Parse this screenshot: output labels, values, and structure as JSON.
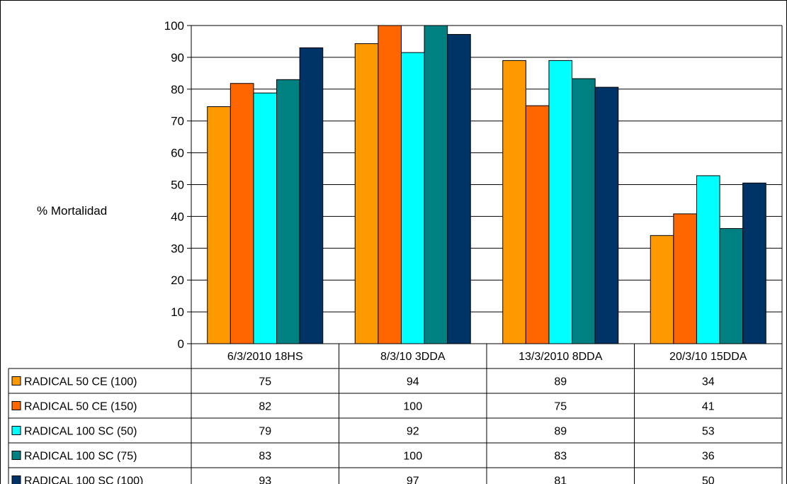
{
  "chart_data": {
    "type": "bar",
    "title": "",
    "xlabel": "",
    "ylabel": "% Mortalidad",
    "ylim": [
      0,
      100
    ],
    "yticks": [
      0,
      10,
      20,
      30,
      40,
      50,
      60,
      70,
      80,
      90,
      100
    ],
    "grid": true,
    "legend": "data-table-left",
    "categories": [
      "6/3/2010 18HS",
      "8/3/10 3DDA",
      "13/3/2010 8DDA",
      "20/3/10 15DDA"
    ],
    "series": [
      {
        "name": "RADICAL 50 CE (100)",
        "color": "#FF9900",
        "values": [
          75,
          94,
          89,
          34
        ],
        "bar_values": [
          74.5,
          94.3,
          89,
          34
        ]
      },
      {
        "name": "RADICAL 50 CE (150)",
        "color": "#FF6600",
        "values": [
          82,
          100,
          75,
          41
        ],
        "bar_values": [
          81.8,
          100,
          74.8,
          40.8
        ]
      },
      {
        "name": "RADICAL 100 SC (50)",
        "color": "#00FFFF",
        "values": [
          79,
          92,
          89,
          53
        ],
        "bar_values": [
          78.8,
          91.5,
          89,
          52.8
        ]
      },
      {
        "name": "RADICAL 100 SC (75)",
        "color": "#008080",
        "values": [
          83,
          100,
          83,
          36
        ],
        "bar_values": [
          83,
          100,
          83.3,
          36.2
        ]
      },
      {
        "name": "RADICAL 100 SC (100)",
        "color": "#003366",
        "values": [
          93,
          97,
          81,
          50
        ],
        "bar_values": [
          93,
          97.2,
          80.6,
          50.5
        ]
      }
    ]
  }
}
